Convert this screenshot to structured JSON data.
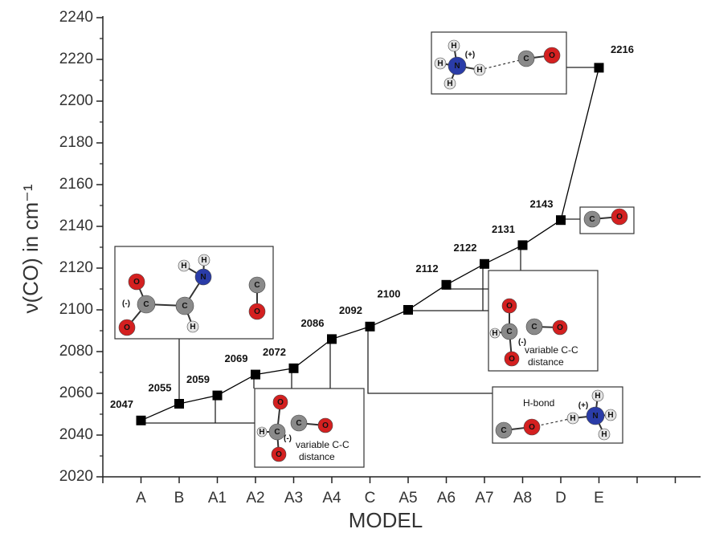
{
  "chart_data": {
    "type": "line",
    "x_label": "MODEL",
    "y_label": "ν(CO) in cm⁻¹",
    "categories": [
      "A",
      "B",
      "A1",
      "A2",
      "A3",
      "A4",
      "C",
      "A5",
      "A6",
      "A7",
      "A8",
      "D",
      "E"
    ],
    "values": [
      2047,
      2055,
      2059,
      2069,
      2072,
      2086,
      2092,
      2100,
      2112,
      2122,
      2131,
      2143,
      2216
    ],
    "color": "#000000",
    "ylim": [
      2020,
      2240
    ],
    "yticks": [
      2020,
      2040,
      2060,
      2080,
      2100,
      2120,
      2140,
      2160,
      2180,
      2200,
      2220,
      2240
    ],
    "insets": [
      {
        "atoms": [
          "O",
          "C",
          "(-)",
          "O",
          "C",
          "H",
          "N",
          "H",
          "H",
          "C",
          "O"
        ],
        "notes": []
      },
      {
        "atoms": [
          "O",
          "C",
          "H",
          "(-)",
          "O",
          "C",
          "O"
        ],
        "notes": [
          "variable C-C",
          "distance"
        ]
      },
      {
        "atoms": [
          "H",
          "H",
          "N",
          "(+)",
          "H",
          "H",
          "C",
          "O"
        ],
        "notes": []
      },
      {
        "atoms": [
          "C",
          "O"
        ],
        "notes": []
      },
      {
        "atoms": [
          "O",
          "C",
          "H",
          "(-)",
          "O",
          "C",
          "O"
        ],
        "notes": [
          "variable C-C",
          "distance"
        ]
      },
      {
        "atoms": [
          "C",
          "O",
          "H",
          "H",
          "N",
          "(+)",
          "H",
          "H"
        ],
        "notes": [
          "H-bond"
        ]
      }
    ]
  }
}
